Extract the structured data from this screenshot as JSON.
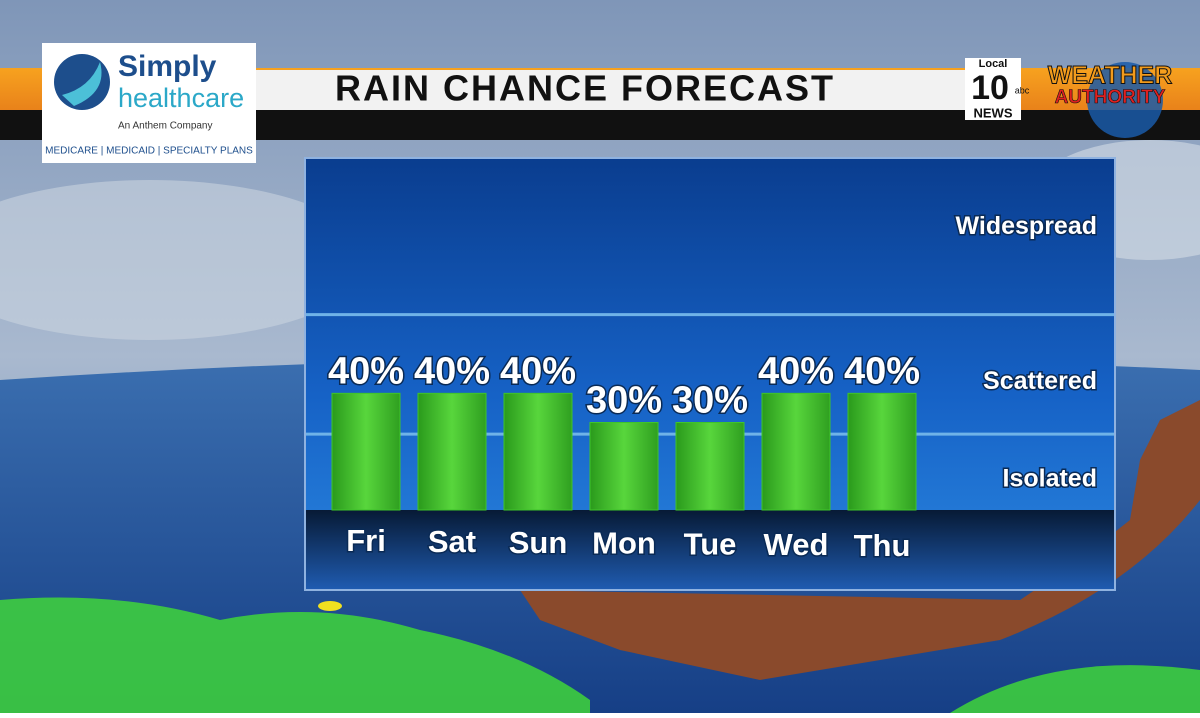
{
  "sponsor": {
    "name": "Simply",
    "name2": "healthcare",
    "tagline": "An Anthem Company",
    "plans": "MEDICARE | MEDICAID | SPECIALTY PLANS"
  },
  "station": {
    "local": "Local",
    "number": "10",
    "network": "abc",
    "news": "NEWS",
    "brand1": "WEATHER",
    "brand2": "AUTHORITY"
  },
  "chart_data": {
    "type": "bar",
    "title": "RAIN CHANCE FORECAST",
    "categories": [
      "Fri",
      "Sat",
      "Sun",
      "Mon",
      "Tue",
      "Wed",
      "Thu"
    ],
    "values": [
      40,
      40,
      40,
      30,
      30,
      40,
      40
    ],
    "value_labels": [
      "40%",
      "40%",
      "40%",
      "30%",
      "30%",
      "40%",
      "40%"
    ],
    "color": "#3fc42a",
    "ylim": [
      0,
      120
    ],
    "bands": [
      {
        "label": "Isolated",
        "from": 0,
        "to": 26
      },
      {
        "label": "Scattered",
        "from": 26,
        "to": 67
      },
      {
        "label": "Widespread",
        "from": 67,
        "to": 120
      }
    ]
  }
}
